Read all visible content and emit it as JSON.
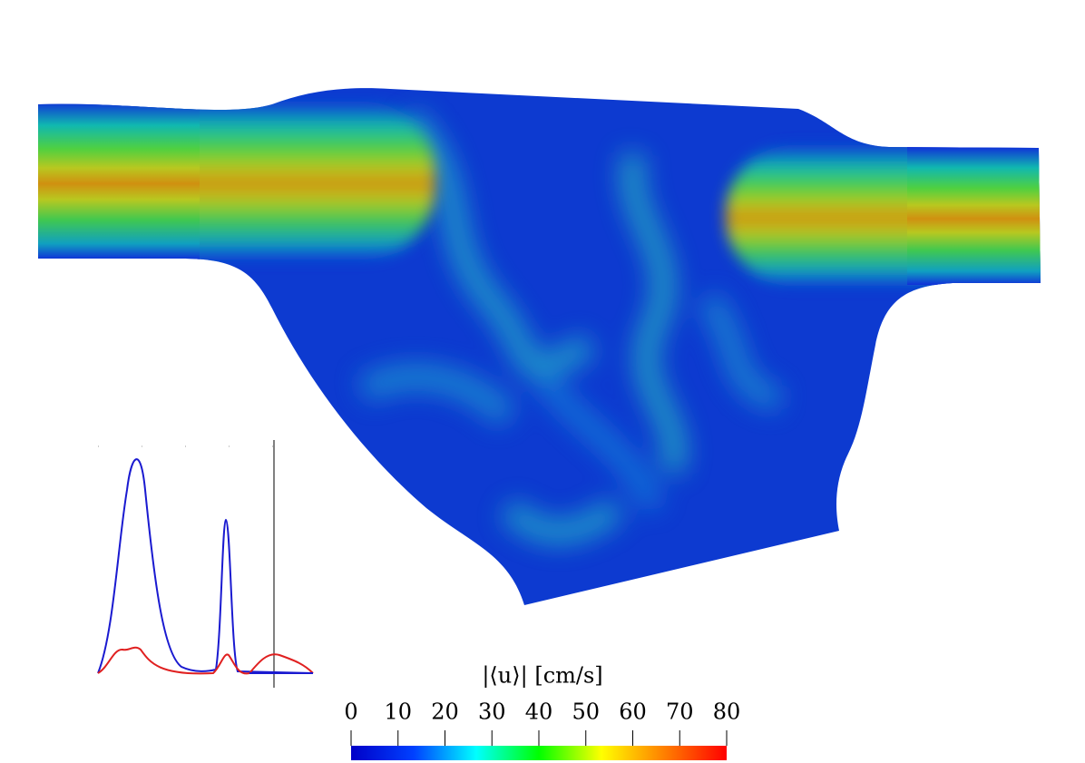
{
  "colorbar": {
    "title": "|⟨u⟩| [cm/s]",
    "lim": [
      0,
      80
    ],
    "ticks": [
      0,
      10,
      20,
      30,
      40,
      50,
      60,
      70,
      80
    ],
    "colors": [
      "#0000c8",
      "#0040ff",
      "#00ffff",
      "#00ff00",
      "#ffff00",
      "#ff8000",
      "#ff0000"
    ]
  }
}
